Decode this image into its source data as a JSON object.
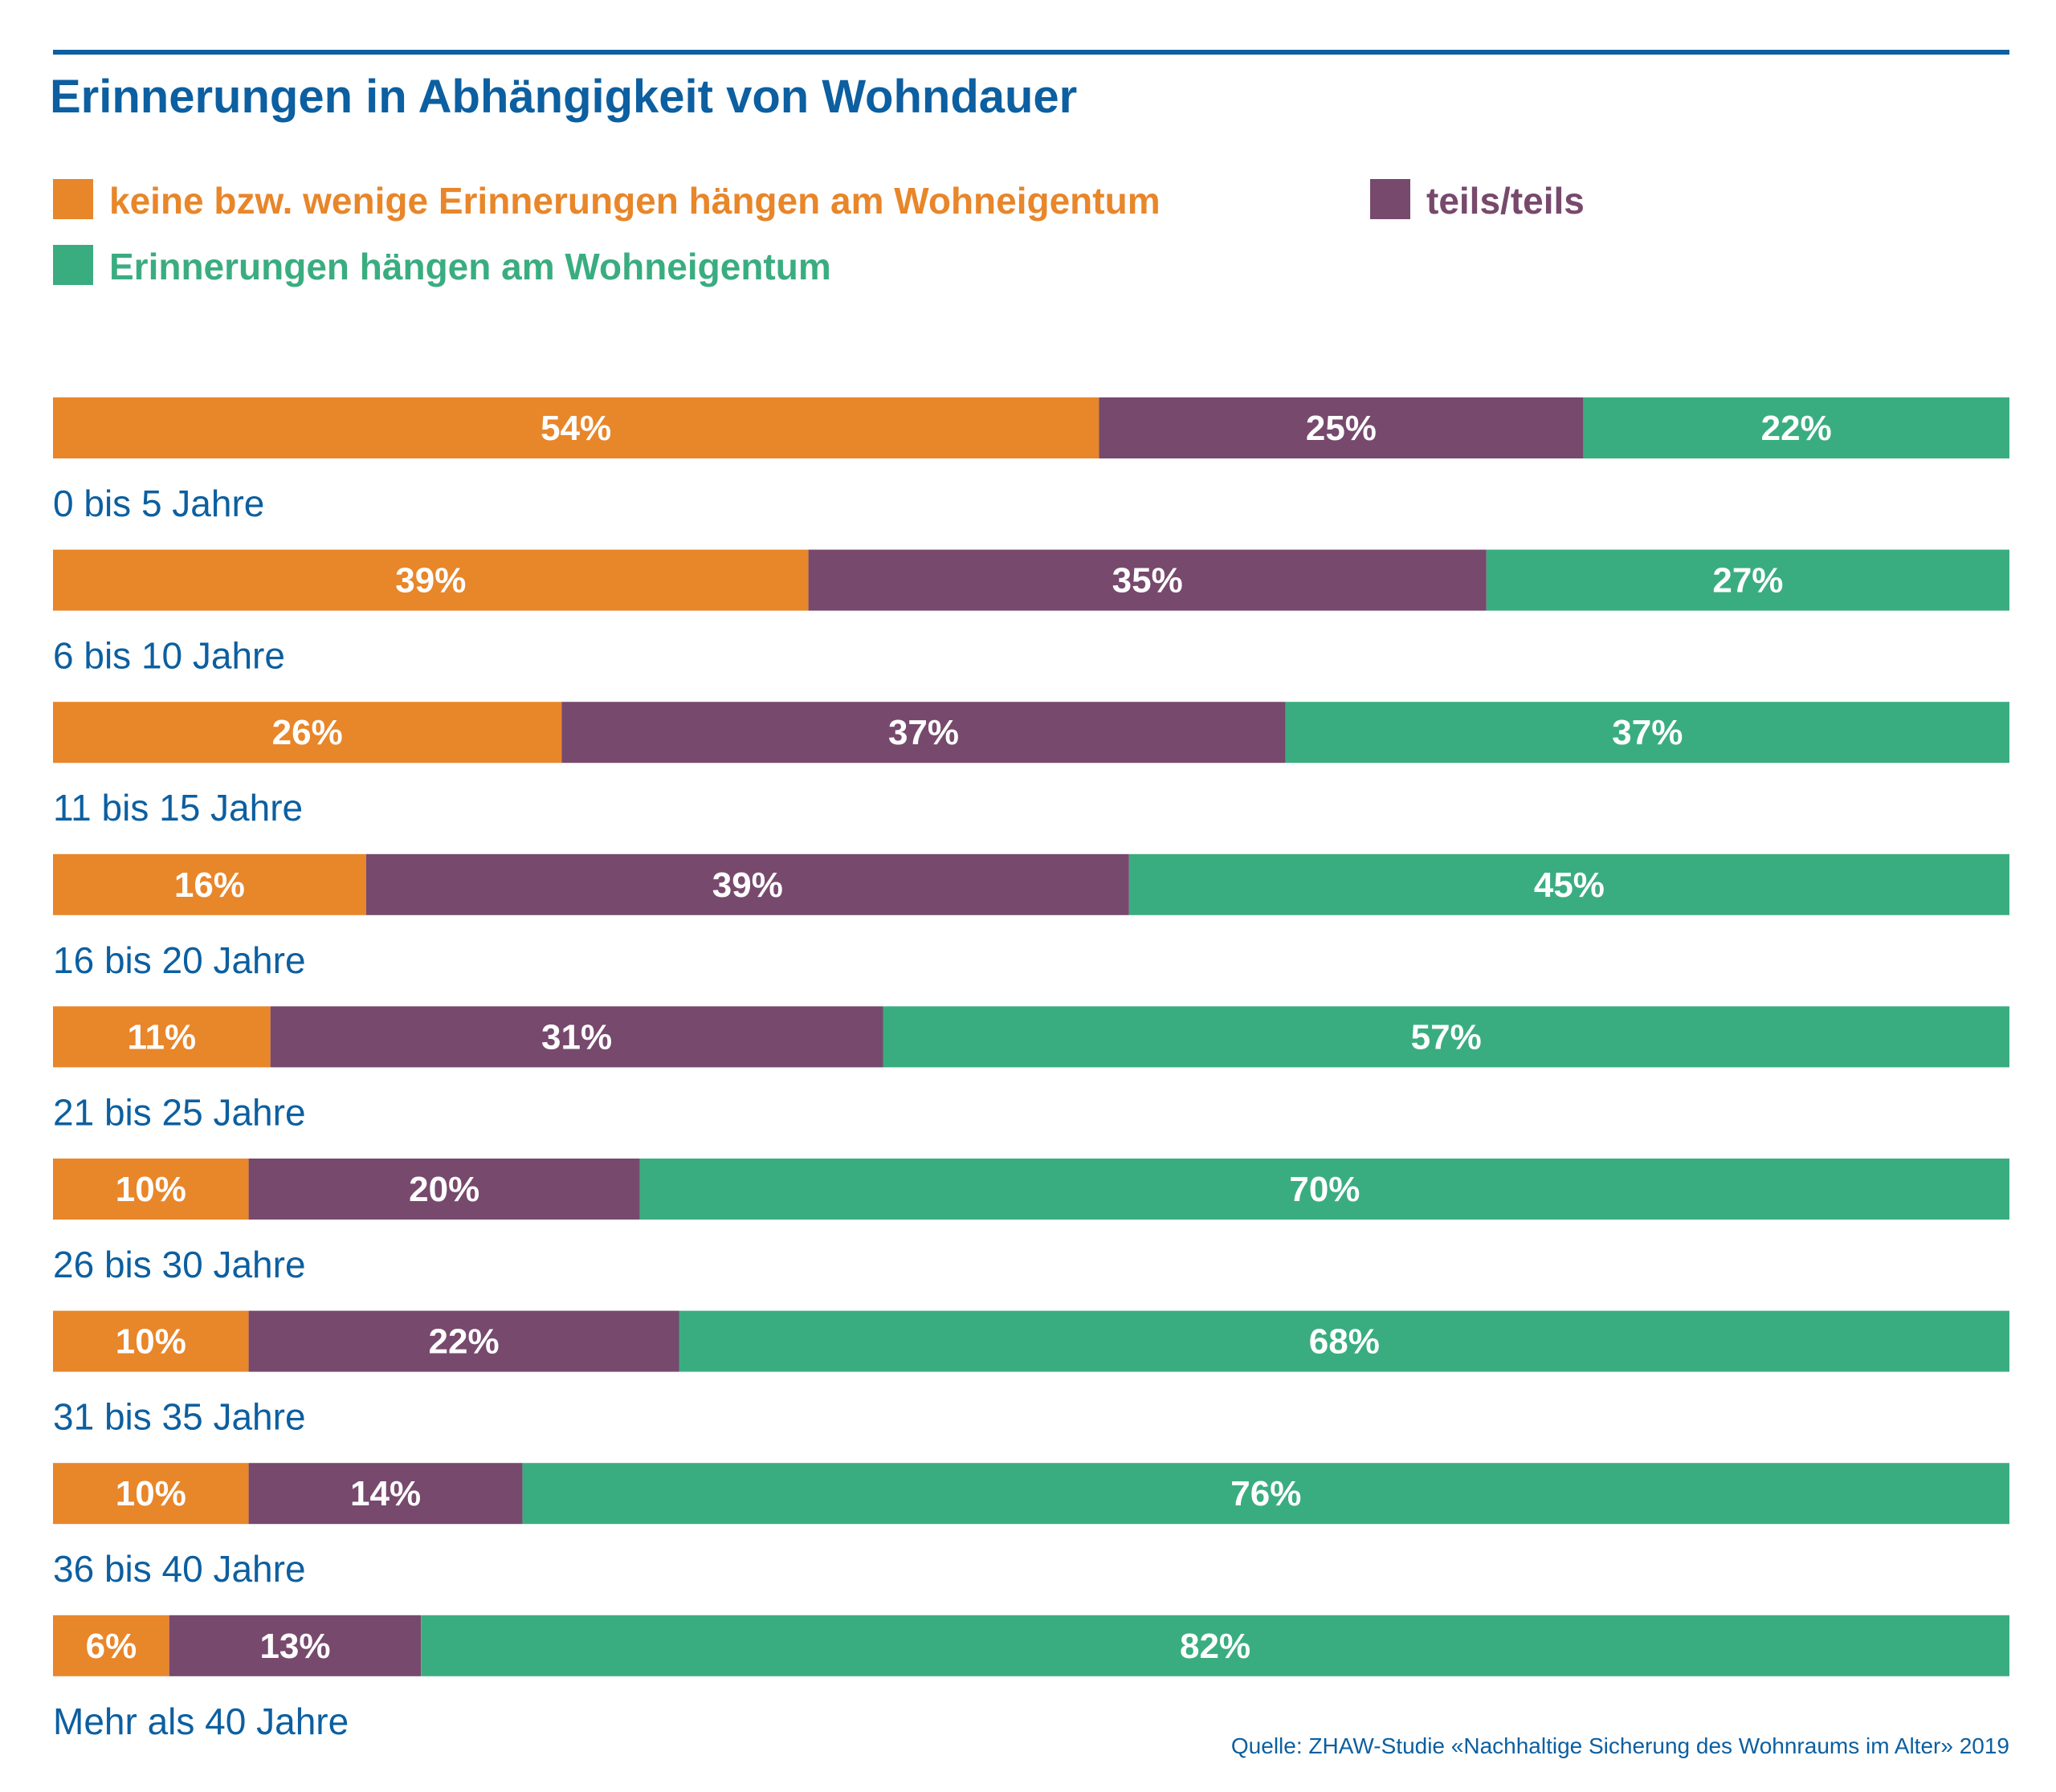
{
  "chart_data": {
    "type": "bar",
    "orientation": "horizontal",
    "stacked": true,
    "title": "Erinnerungen in Abhängigkeit von Wohndauer",
    "categories": [
      "0 bis 5 Jahre",
      "6 bis 10 Jahre",
      "11 bis 15 Jahre",
      "16 bis 20 Jahre",
      "21 bis 25 Jahre",
      "26 bis 30 Jahre",
      "31 bis 35 Jahre",
      "36 bis 40 Jahre",
      "Mehr als 40 Jahre"
    ],
    "series": [
      {
        "name": "keine bzw. wenige Erinnerungen hängen am Wohneigentum",
        "color": "#e8862a",
        "values": [
          54,
          39,
          26,
          16,
          11,
          10,
          10,
          10,
          6
        ]
      },
      {
        "name": "teils/teils",
        "color": "#77496d",
        "values": [
          25,
          35,
          37,
          39,
          31,
          20,
          22,
          14,
          13
        ]
      },
      {
        "name": "Erinnerungen hängen am Wohneigentum",
        "color": "#3aad80",
        "values": [
          22,
          27,
          37,
          45,
          57,
          70,
          68,
          76,
          82
        ]
      }
    ],
    "value_suffix": "%",
    "legend_position": "top-left",
    "grid": false,
    "source": "Quelle: ZHAW-Studie «Nachhaltige Sicherung des Wohnraums im Alter» 2019"
  },
  "colors": {
    "title": "#0c5fa0",
    "category_label": "#0c5fa0",
    "top_rule": "#0c5fa0"
  }
}
